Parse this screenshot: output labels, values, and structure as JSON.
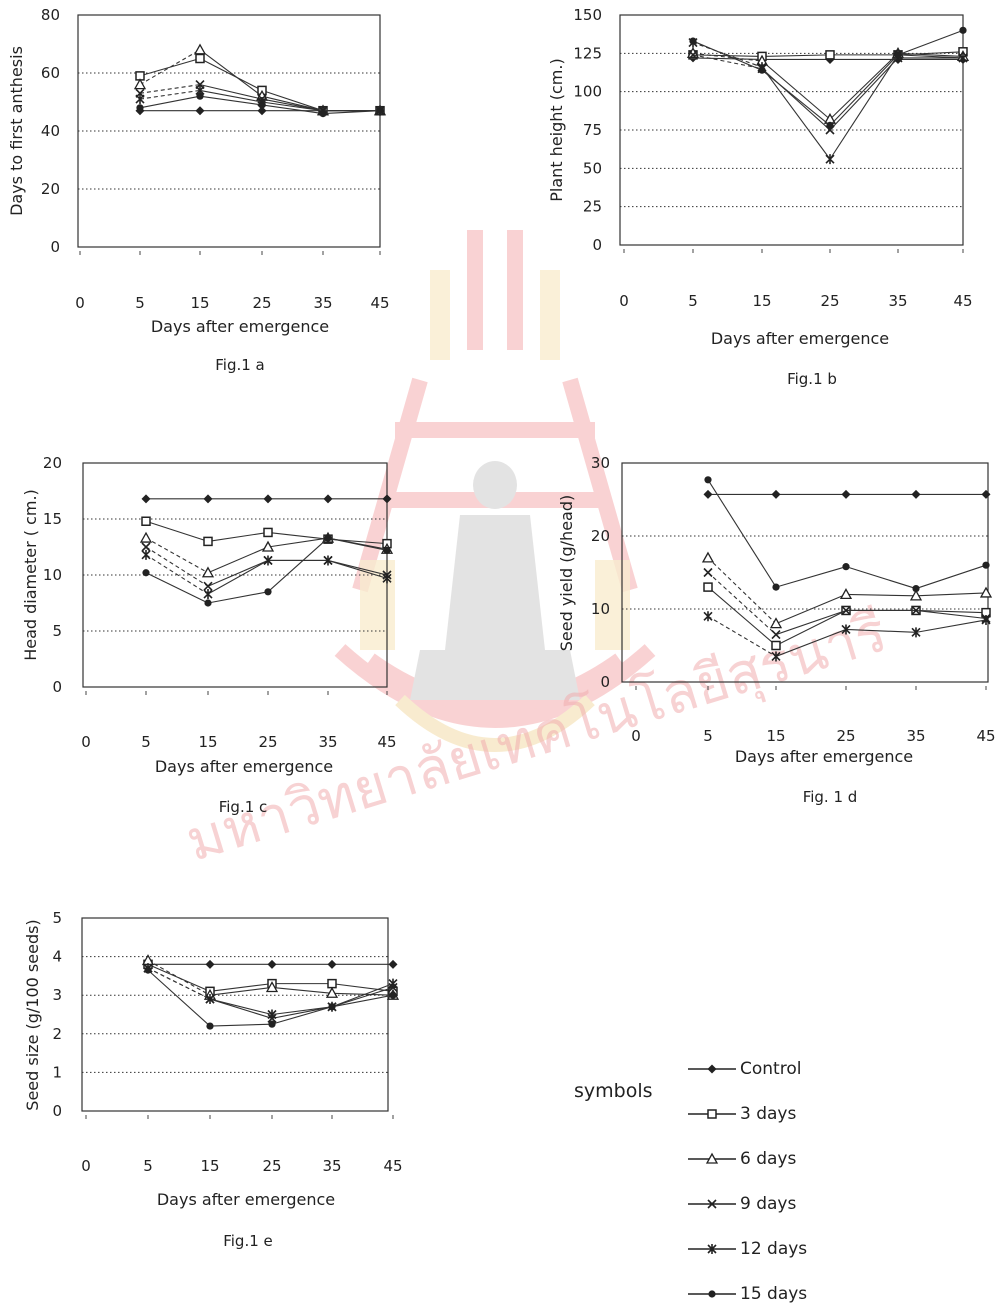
{
  "watermark_text": "มหาวิทยาลัยเทคโนโลยีสุรนารี",
  "chart_data": [
    {
      "type": "line",
      "figure_label": "Fig.1 a",
      "xlabel": "Days after emergence",
      "ylabel": "Days to first anthesis",
      "xticks": [
        "0",
        "5",
        "15",
        "25",
        "35",
        "45"
      ],
      "yticks": [
        0,
        20,
        40,
        60,
        80
      ],
      "ylim": [
        0,
        80
      ],
      "grid": "horizontal dotted",
      "series": [
        {
          "name": "Control",
          "marker": "diamond",
          "values": [
            47,
            47,
            47,
            47,
            47
          ]
        },
        {
          "name": "3 days",
          "marker": "square",
          "values": [
            59,
            65,
            54,
            47,
            47
          ]
        },
        {
          "name": "6 days",
          "marker": "triangle",
          "values": [
            56,
            68,
            52,
            47,
            47
          ]
        },
        {
          "name": "9 days",
          "marker": "x",
          "values": [
            53,
            56,
            51,
            47,
            47
          ]
        },
        {
          "name": "12 days",
          "marker": "star",
          "values": [
            51,
            54,
            50,
            47,
            47
          ]
        },
        {
          "name": "15 days",
          "marker": "circle",
          "values": [
            48,
            52,
            49,
            46,
            47
          ]
        }
      ]
    },
    {
      "type": "line",
      "figure_label": "Fig.1 b",
      "xlabel": "Days after emergence",
      "ylabel": "Plant height (cm.)",
      "xticks": [
        "0",
        "5",
        "15",
        "25",
        "35",
        "45"
      ],
      "yticks": [
        0,
        25,
        50,
        75,
        100,
        125,
        150
      ],
      "ylim": [
        0,
        150
      ],
      "grid": "horizontal dotted",
      "series": [
        {
          "name": "Control",
          "marker": "diamond",
          "values": [
            122,
            121,
            121,
            121,
            121
          ]
        },
        {
          "name": "3 days",
          "marker": "square",
          "values": [
            124,
            123,
            124,
            124,
            126
          ]
        },
        {
          "name": "6 days",
          "marker": "triangle",
          "values": [
            125,
            120,
            82,
            125,
            123
          ]
        },
        {
          "name": "9 days",
          "marker": "x",
          "values": [
            124,
            115,
            75,
            122,
            122
          ]
        },
        {
          "name": "12 days",
          "marker": "star",
          "values": [
            132,
            116,
            56,
            124,
            122
          ]
        },
        {
          "name": "15 days",
          "marker": "circle",
          "values": [
            133,
            114,
            78,
            124,
            140
          ]
        }
      ]
    },
    {
      "type": "line",
      "figure_label": "Fig.1 c",
      "xlabel": "Days after emergence",
      "ylabel": "Head diameter ( cm.)",
      "xticks": [
        "0",
        "5",
        "15",
        "25",
        "35",
        "45"
      ],
      "yticks": [
        0,
        5,
        10,
        15,
        20
      ],
      "ylim": [
        0,
        20
      ],
      "grid": "horizontal dotted",
      "series": [
        {
          "name": "Control",
          "marker": "diamond",
          "values": [
            16.8,
            16.8,
            16.8,
            16.8,
            16.8
          ]
        },
        {
          "name": "3 days",
          "marker": "square",
          "values": [
            14.8,
            13,
            13.8,
            13.2,
            12.8
          ]
        },
        {
          "name": "6 days",
          "marker": "triangle",
          "values": [
            13.3,
            10.2,
            12.5,
            13.3,
            12.3
          ]
        },
        {
          "name": "9 days",
          "marker": "x",
          "values": [
            12.5,
            9,
            11.3,
            11.3,
            10
          ]
        },
        {
          "name": "12 days",
          "marker": "star",
          "values": [
            11.8,
            8.3,
            11.3,
            11.3,
            9.7
          ]
        },
        {
          "name": "15 days",
          "marker": "circle",
          "values": [
            10.2,
            7.5,
            8.5,
            13.3,
            12.2
          ]
        }
      ]
    },
    {
      "type": "line",
      "figure_label": "Fig. 1 d",
      "xlabel": "Days after emergence",
      "ylabel": "Seed yield (g/head)",
      "xticks": [
        "0",
        "5",
        "15",
        "25",
        "35",
        "45"
      ],
      "yticks": [
        0,
        10,
        20,
        30
      ],
      "ylim": [
        0,
        30
      ],
      "grid": "horizontal dotted",
      "series": [
        {
          "name": "Control",
          "marker": "diamond",
          "values": [
            25.7,
            25.7,
            25.7,
            25.7,
            25.7
          ]
        },
        {
          "name": "3 days",
          "marker": "square",
          "values": [
            13,
            5,
            9.8,
            9.8,
            9.5
          ]
        },
        {
          "name": "6 days",
          "marker": "triangle",
          "values": [
            17,
            8,
            12,
            11.8,
            12.2
          ]
        },
        {
          "name": "9 days",
          "marker": "x",
          "values": [
            15,
            6.5,
            9.8,
            9.8,
            8.7
          ]
        },
        {
          "name": "12 days",
          "marker": "star",
          "values": [
            9,
            3.5,
            7.2,
            6.8,
            8.5
          ]
        },
        {
          "name": "15 days",
          "marker": "circle",
          "values": [
            27.7,
            13,
            15.8,
            12.8,
            16
          ]
        }
      ]
    },
    {
      "type": "line",
      "figure_label": "Fig.1 e",
      "xlabel": "Days after emergence",
      "ylabel": "Seed size (g/100 seeds)",
      "xticks": [
        "0",
        "5",
        "15",
        "25",
        "35",
        "45"
      ],
      "yticks": [
        0,
        1,
        2,
        3,
        4,
        5
      ],
      "ylim": [
        0,
        5
      ],
      "grid": "horizontal dotted",
      "series": [
        {
          "name": "Control",
          "marker": "diamond",
          "values": [
            3.8,
            3.8,
            3.8,
            3.8,
            3.8
          ]
        },
        {
          "name": "3 days",
          "marker": "square",
          "values": [
            3.8,
            3.1,
            3.3,
            3.3,
            3.1
          ]
        },
        {
          "name": "6 days",
          "marker": "triangle",
          "values": [
            3.9,
            3.0,
            3.2,
            3.05,
            3.0
          ]
        },
        {
          "name": "9 days",
          "marker": "x",
          "values": [
            3.7,
            2.9,
            2.4,
            2.7,
            3.2
          ]
        },
        {
          "name": "12 days",
          "marker": "star",
          "values": [
            3.7,
            2.9,
            2.5,
            2.7,
            3.3
          ]
        },
        {
          "name": "15 days",
          "marker": "circle",
          "values": [
            3.65,
            2.2,
            2.25,
            2.7,
            3.0
          ]
        }
      ]
    }
  ],
  "legend": {
    "title": "symbols",
    "items": [
      {
        "label": "Control",
        "marker": "diamond"
      },
      {
        "label": "3 days",
        "marker": "square"
      },
      {
        "label": "6 days",
        "marker": "triangle"
      },
      {
        "label": "9 days",
        "marker": "x"
      },
      {
        "label": "12 days",
        "marker": "star"
      },
      {
        "label": "15 days",
        "marker": "circle"
      }
    ]
  }
}
